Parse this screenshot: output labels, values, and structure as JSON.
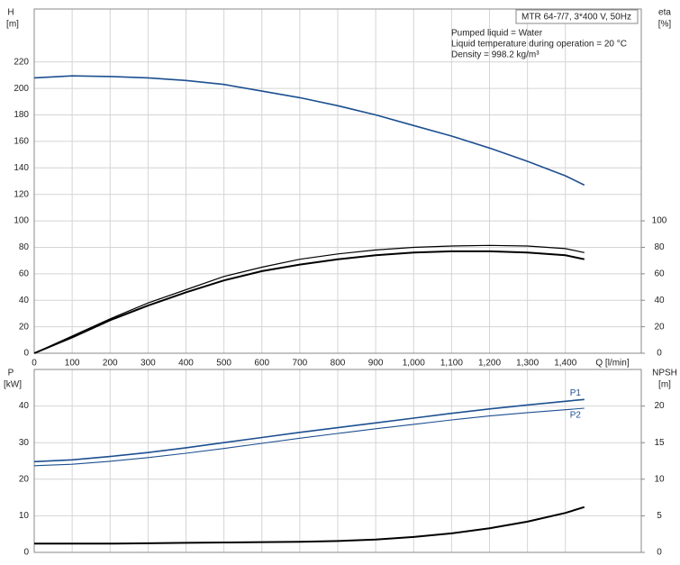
{
  "chart_data": [
    {
      "type": "line",
      "y_label": "H",
      "y_unit": "[m]",
      "y2_label": "eta",
      "y2_unit": "[%]",
      "x_label": "Q [l/min]",
      "annotation_box": "MTR 64-7/7, 3*400 V, 50Hz",
      "annotations": [
        "Pumped liquid = Water",
        "Liquid temperature during operation = 20 °C",
        "Density = 998.2 kg/m³"
      ],
      "x": [
        0,
        100,
        200,
        300,
        400,
        500,
        600,
        700,
        800,
        900,
        1000,
        1100,
        1200,
        1300,
        1400,
        1450
      ],
      "xlim": [
        0,
        1600
      ],
      "ylim": [
        0,
        260
      ],
      "y2lim": [
        0,
        260
      ],
      "xticks": [
        0,
        100,
        200,
        300,
        400,
        500,
        600,
        700,
        800,
        900,
        {
          "value": 1000,
          "label": "1,000"
        },
        {
          "value": 1100,
          "label": "1,100"
        },
        {
          "value": 1200,
          "label": "1,200"
        },
        {
          "value": 1300,
          "label": "1,300"
        },
        {
          "value": 1400,
          "label": "1,400"
        }
      ],
      "yticks": [
        0,
        20,
        40,
        60,
        80,
        100,
        120,
        140,
        160,
        180,
        200,
        220
      ],
      "y2ticks": [
        0,
        20,
        40,
        60,
        80,
        100
      ],
      "grid": true,
      "xtick_labels": true,
      "series": [
        {
          "color": "#1d4f91",
          "line_width": 1.6,
          "values": [
            208,
            209.5,
            209,
            208,
            206,
            203,
            198,
            193,
            187,
            180,
            172,
            164,
            155,
            145,
            134,
            127
          ]
        },
        {
          "color": "#000000",
          "axis": "y2",
          "line_width": 1.2,
          "values": [
            0,
            13,
            26,
            38,
            48,
            58,
            65,
            71,
            75,
            78,
            80,
            81,
            81.5,
            81,
            79,
            76
          ]
        },
        {
          "color": "#000000",
          "axis": "y2",
          "line_width": 2,
          "values": [
            0,
            12,
            25,
            36,
            46,
            55,
            62,
            67,
            71,
            74,
            76,
            77,
            77,
            76,
            74,
            71
          ]
        }
      ]
    },
    {
      "type": "line",
      "y_label": "P",
      "y_unit": "[kW]",
      "y2_label": "NPSH",
      "y2_unit": "[m]",
      "x": [
        0,
        100,
        200,
        300,
        400,
        500,
        600,
        700,
        800,
        900,
        1000,
        1100,
        1200,
        1300,
        1400,
        1450
      ],
      "xlim": [
        0,
        1600
      ],
      "ylim": [
        0,
        50
      ],
      "y2lim": [
        0,
        25
      ],
      "xticks": [
        0,
        100,
        200,
        300,
        400,
        500,
        600,
        700,
        800,
        900,
        1000,
        1100,
        1200,
        1300,
        1400
      ],
      "yticks": [
        0,
        10,
        20,
        30,
        40
      ],
      "y2ticks": [
        0,
        5,
        10,
        15,
        20
      ],
      "grid": true,
      "xtick_labels": false,
      "series": [
        {
          "name": "P1",
          "color": "#1d4f91",
          "line_width": 1.6,
          "values": [
            24.8,
            25.3,
            26.2,
            27.3,
            28.6,
            30,
            31.4,
            32.8,
            34.1,
            35.4,
            36.7,
            38,
            39.2,
            40.3,
            41.3,
            41.8
          ]
        },
        {
          "name": "P2",
          "color": "#1d4f91",
          "line_width": 1.1,
          "values": [
            23.7,
            24.1,
            24.9,
            25.9,
            27.1,
            28.4,
            29.8,
            31.2,
            32.5,
            33.8,
            35,
            36.2,
            37.3,
            38.2,
            39,
            39.4
          ]
        },
        {
          "color": "#000000",
          "axis": "y2",
          "line_width": 2,
          "values": [
            1.2,
            1.2,
            1.2,
            1.25,
            1.3,
            1.35,
            1.4,
            1.45,
            1.55,
            1.75,
            2.1,
            2.6,
            3.3,
            4.2,
            5.4,
            6.2
          ]
        }
      ]
    }
  ]
}
